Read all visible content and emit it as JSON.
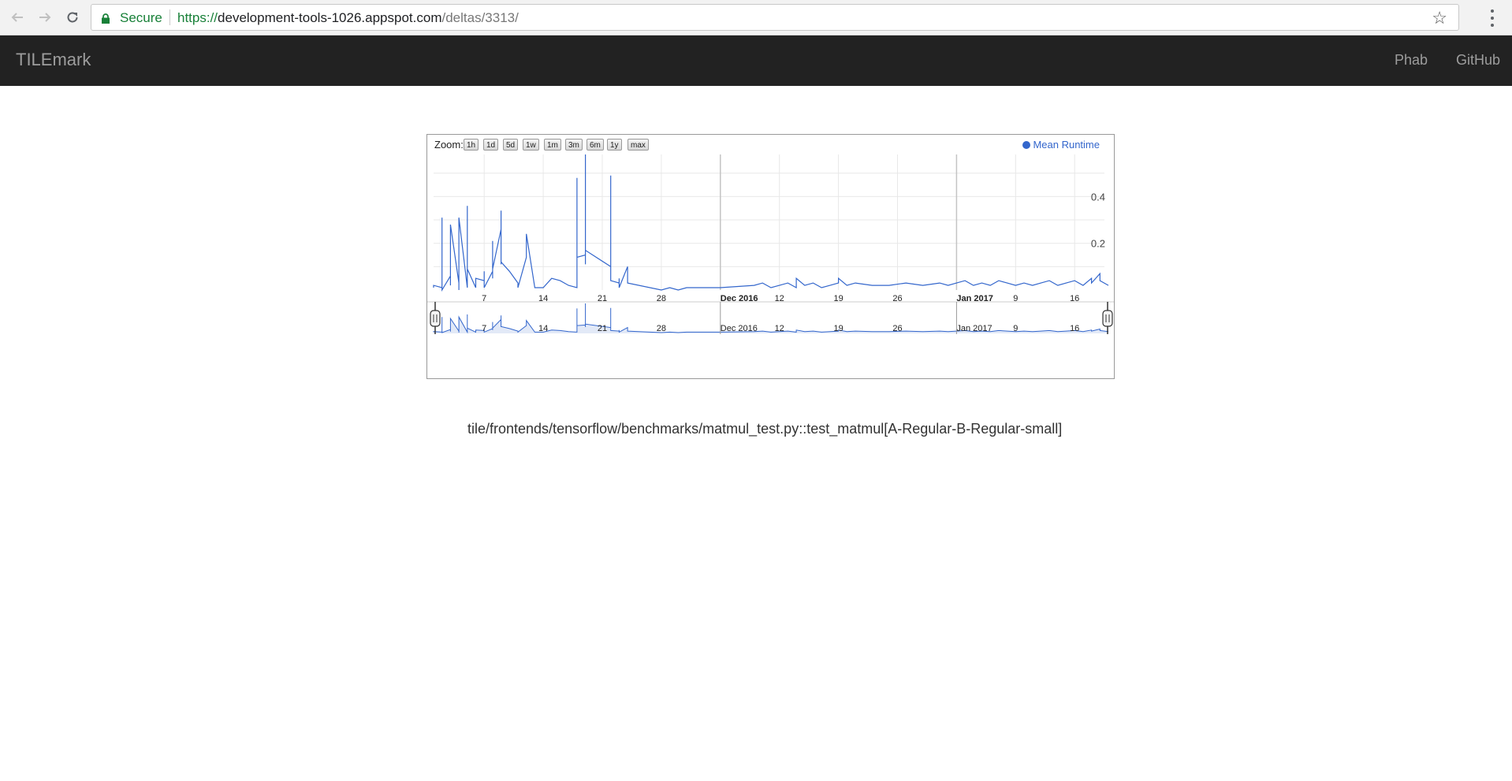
{
  "browser": {
    "secure_label": "Secure",
    "url_scheme": "https://",
    "url_host": "development-tools-1026.appspot.com",
    "url_path": "/deltas/3313/"
  },
  "navbar": {
    "brand": "TILEmark",
    "links": [
      "Phab",
      "GitHub"
    ]
  },
  "zoom": {
    "label": "Zoom:",
    "buttons": [
      "1h",
      "1d",
      "5d",
      "1w",
      "1m",
      "3m",
      "6m",
      "1y",
      "max"
    ]
  },
  "chart_data": {
    "type": "line",
    "series": [
      {
        "name": "Mean Runtime",
        "points": [
          [
            "2016-11-01",
            0.01
          ],
          [
            "2016-11-01",
            0.02
          ],
          [
            "2016-11-02",
            0.01
          ],
          [
            "2016-11-02",
            0.31
          ],
          [
            "2016-11-02",
            0.0
          ],
          [
            "2016-11-03",
            0.06
          ],
          [
            "2016-11-03",
            0.02
          ],
          [
            "2016-11-03",
            0.04
          ],
          [
            "2016-11-03",
            0.28
          ],
          [
            "2016-11-04",
            0.03
          ],
          [
            "2016-11-04",
            0.0
          ],
          [
            "2016-11-04",
            0.31
          ],
          [
            "2016-11-05",
            0.01
          ],
          [
            "2016-11-05",
            0.03
          ],
          [
            "2016-11-05",
            0.36
          ],
          [
            "2016-11-05",
            0.09
          ],
          [
            "2016-11-06",
            0.01
          ],
          [
            "2016-11-06",
            0.05
          ],
          [
            "2016-11-07",
            0.04
          ],
          [
            "2016-11-07",
            0.08
          ],
          [
            "2016-11-07",
            0.01
          ],
          [
            "2016-11-08",
            0.08
          ],
          [
            "2016-11-08",
            0.21
          ],
          [
            "2016-11-08",
            0.05
          ],
          [
            "2016-11-08",
            0.09
          ],
          [
            "2016-11-09",
            0.26
          ],
          [
            "2016-11-09",
            0.11
          ],
          [
            "2016-11-09",
            0.34
          ],
          [
            "2016-11-09",
            0.12
          ],
          [
            "2016-11-10",
            0.08
          ],
          [
            "2016-11-11",
            0.03
          ],
          [
            "2016-11-11",
            0.01
          ],
          [
            "2016-11-12",
            0.14
          ],
          [
            "2016-11-12",
            0.24
          ],
          [
            "2016-11-13",
            0.01
          ],
          [
            "2016-11-14",
            0.01
          ],
          [
            "2016-11-15",
            0.05
          ],
          [
            "2016-11-16",
            0.04
          ],
          [
            "2016-11-17",
            0.02
          ],
          [
            "2016-11-18",
            0.01
          ],
          [
            "2016-11-18",
            0.48
          ],
          [
            "2016-11-18",
            0.14
          ],
          [
            "2016-11-19",
            0.15
          ],
          [
            "2016-11-19",
            0.11
          ],
          [
            "2016-11-19",
            0.58
          ],
          [
            "2016-11-19",
            0.17
          ],
          [
            "2016-11-22",
            0.1
          ],
          [
            "2016-11-22",
            0.49
          ],
          [
            "2016-11-22",
            0.04
          ],
          [
            "2016-11-23",
            0.03
          ],
          [
            "2016-11-23",
            0.05
          ],
          [
            "2016-11-23",
            0.01
          ],
          [
            "2016-11-24",
            0.1
          ],
          [
            "2016-11-24",
            0.03
          ],
          [
            "2016-11-28",
            0.0
          ],
          [
            "2016-11-29",
            0.01
          ],
          [
            "2016-11-30",
            0.0
          ],
          [
            "2016-12-01",
            0.01
          ],
          [
            "2016-12-05",
            0.01
          ],
          [
            "2016-12-09",
            0.02
          ],
          [
            "2016-12-10",
            0.03
          ],
          [
            "2016-12-11",
            0.01
          ],
          [
            "2016-12-12",
            0.02
          ],
          [
            "2016-12-13",
            0.03
          ],
          [
            "2016-12-14",
            0.01
          ],
          [
            "2016-12-14",
            0.05
          ],
          [
            "2016-12-15",
            0.02
          ],
          [
            "2016-12-16",
            0.03
          ],
          [
            "2016-12-17",
            0.01
          ],
          [
            "2016-12-18",
            0.02
          ],
          [
            "2016-12-19",
            0.03
          ],
          [
            "2016-12-19",
            0.05
          ],
          [
            "2016-12-20",
            0.02
          ],
          [
            "2016-12-21",
            0.03
          ],
          [
            "2016-12-23",
            0.02
          ],
          [
            "2016-12-25",
            0.02
          ],
          [
            "2016-12-27",
            0.03
          ],
          [
            "2016-12-29",
            0.02
          ],
          [
            "2016-12-31",
            0.03
          ],
          [
            "2017-01-01",
            0.02
          ],
          [
            "2017-01-02",
            0.03
          ],
          [
            "2017-01-03",
            0.04
          ],
          [
            "2017-01-04",
            0.02
          ],
          [
            "2017-01-05",
            0.03
          ],
          [
            "2017-01-06",
            0.02
          ],
          [
            "2017-01-07",
            0.04
          ],
          [
            "2017-01-08",
            0.03
          ],
          [
            "2017-01-09",
            0.02
          ],
          [
            "2017-01-10",
            0.03
          ],
          [
            "2017-01-11",
            0.02
          ],
          [
            "2017-01-12",
            0.03
          ],
          [
            "2017-01-13",
            0.04
          ],
          [
            "2017-01-14",
            0.02
          ],
          [
            "2017-01-15",
            0.03
          ],
          [
            "2017-01-16",
            0.04
          ],
          [
            "2017-01-17",
            0.02
          ],
          [
            "2017-01-18",
            0.05
          ],
          [
            "2017-01-18",
            0.03
          ],
          [
            "2017-01-19",
            0.07
          ],
          [
            "2017-01-19",
            0.04
          ],
          [
            "2017-01-20",
            0.02
          ]
        ]
      }
    ],
    "x_tick_labels": [
      "7",
      "14",
      "21",
      "28",
      "Dec 2016",
      "12",
      "19",
      "26",
      "Jan 2017",
      "9",
      "16"
    ],
    "x_ticks": [
      "2016-11-07",
      "2016-11-14",
      "2016-11-21",
      "2016-11-28",
      "2016-12-05",
      "2016-12-12",
      "2016-12-19",
      "2016-12-26",
      "2017-01-02",
      "2017-01-09",
      "2017-01-16"
    ],
    "y_tick_labels": [
      "0.2",
      "0.4"
    ],
    "y_ticks": [
      0.2,
      0.4
    ],
    "xlim": [
      "2016-11-01",
      "2017-01-20"
    ],
    "ylim": [
      0,
      0.58
    ],
    "grid": true,
    "legend_position": "top-right",
    "line_color": "#3366cc",
    "has_range_navigator": true
  },
  "test_name": "tile/frontends/tensorflow/benchmarks/matmul_test.py::test_matmul[A-Regular-B-Regular-small]"
}
